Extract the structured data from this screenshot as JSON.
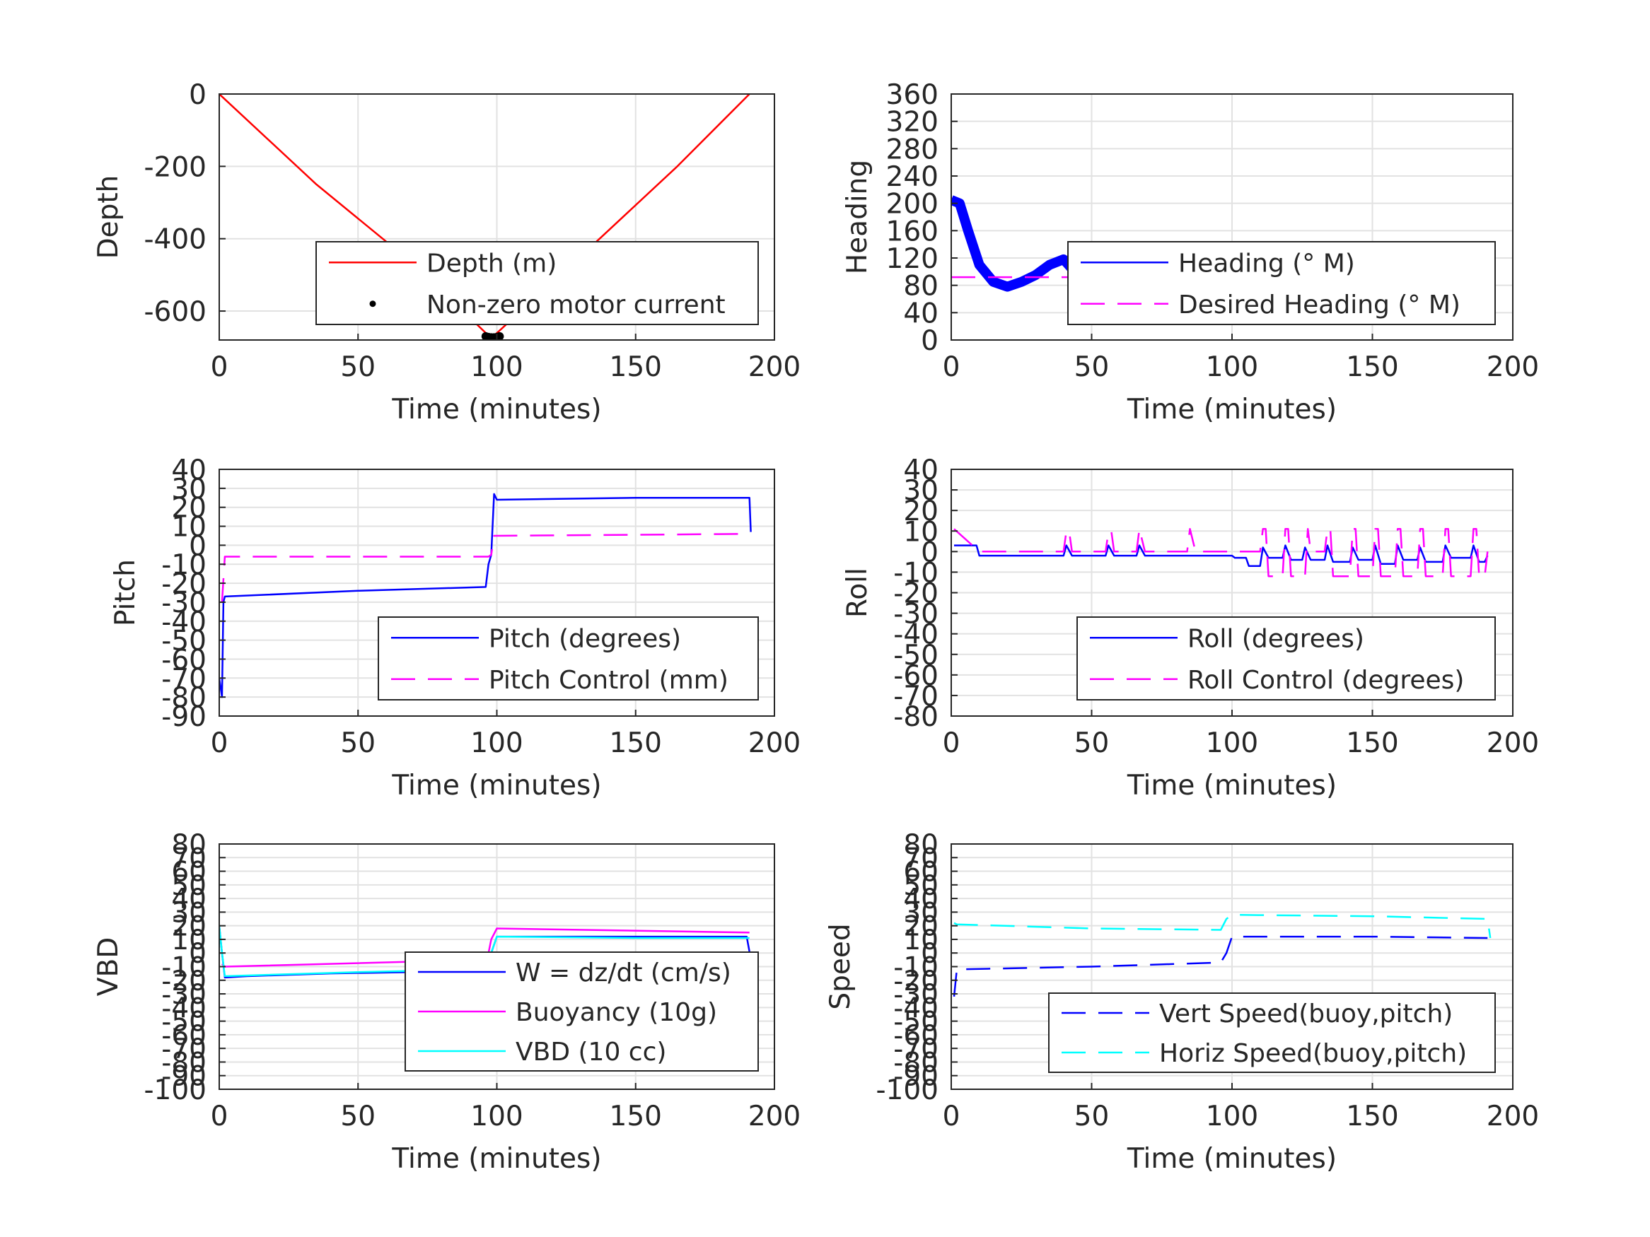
{
  "chart_data": [
    {
      "id": "depth",
      "type": "line",
      "xlabel": "Time (minutes)",
      "ylabel": "Depth",
      "xlim": [
        0,
        200
      ],
      "ylim": [
        -680,
        0
      ],
      "xticks": [
        0,
        50,
        100,
        150,
        200
      ],
      "yticks": [
        -600,
        -400,
        -200,
        0
      ],
      "grid": true,
      "legend_position": "lower-right",
      "series": [
        {
          "name": "Depth (m)",
          "style": "solid",
          "color": "#ff0000",
          "x": [
            0,
            35,
            70,
            98,
            130,
            165,
            191
          ],
          "y": [
            0,
            -250,
            -470,
            -675,
            -450,
            -200,
            0
          ]
        },
        {
          "name": "Non-zero motor current",
          "style": "dots",
          "color": "#000000",
          "x": [
            96,
            97,
            98,
            99,
            100,
            101
          ],
          "y": [
            -670,
            -672,
            -673,
            -673,
            -672,
            -670
          ]
        }
      ]
    },
    {
      "id": "heading",
      "type": "line",
      "xlabel": "Time (minutes)",
      "ylabel": "Heading",
      "xlim": [
        0,
        200
      ],
      "ylim": [
        0,
        360
      ],
      "xticks": [
        0,
        50,
        100,
        150,
        200
      ],
      "yticks": [
        0,
        40,
        80,
        120,
        160,
        200,
        240,
        280,
        320,
        360
      ],
      "grid": true,
      "legend_position": "lower-right",
      "series": [
        {
          "name": "Heading (° M)",
          "style": "thick",
          "color": "#0000ff",
          "x": [
            0,
            3,
            6,
            10,
            15,
            20,
            25,
            30,
            35,
            40,
            45,
            50,
            55,
            60,
            65,
            70,
            75,
            80,
            85,
            90,
            95,
            100,
            105,
            110,
            115,
            120,
            125,
            130,
            135,
            140,
            145,
            150,
            155,
            160,
            165,
            170,
            175,
            180,
            185,
            190
          ],
          "y": [
            205,
            200,
            160,
            110,
            85,
            78,
            85,
            95,
            110,
            118,
            95,
            112,
            100,
            125,
            95,
            125,
            90,
            118,
            105,
            115,
            95,
            120,
            105,
            85,
            130,
            70,
            135,
            60,
            120,
            95,
            125,
            80,
            120,
            95,
            125,
            90,
            115,
            100,
            110,
            60
          ]
        },
        {
          "name": "Desired Heading (° M)",
          "style": "dashed",
          "color": "#ff00ff",
          "x": [
            0,
            192
          ],
          "y": [
            92,
            92
          ]
        }
      ]
    },
    {
      "id": "pitch",
      "type": "line",
      "xlabel": "Time (minutes)",
      "ylabel": "Pitch",
      "xlim": [
        0,
        200
      ],
      "ylim": [
        -90,
        40
      ],
      "xticks": [
        0,
        50,
        100,
        150,
        200
      ],
      "yticks": [
        -90,
        -80,
        -70,
        -60,
        -50,
        -40,
        -30,
        -20,
        -10,
        0,
        10,
        20,
        30,
        40
      ],
      "grid": true,
      "legend_position": "lower-right",
      "series": [
        {
          "name": "Pitch (degrees)",
          "style": "solid",
          "color": "#0000ff",
          "x": [
            0,
            1,
            1.5,
            2,
            50,
            96,
            97,
            98,
            99,
            100,
            150,
            191,
            191.5
          ],
          "y": [
            -70,
            -80,
            -30,
            -27,
            -24,
            -22,
            -10,
            -5,
            27,
            24,
            25,
            25,
            7
          ]
        },
        {
          "name": "Pitch Control (mm)",
          "style": "dashed",
          "color": "#ff00ff",
          "x": [
            1,
            2,
            97,
            98,
            99,
            191
          ],
          "y": [
            -30,
            -6,
            -6,
            -5,
            5,
            6
          ]
        }
      ]
    },
    {
      "id": "roll",
      "type": "line",
      "xlabel": "Time (minutes)",
      "ylabel": "Roll",
      "xlim": [
        0,
        200
      ],
      "ylim": [
        -80,
        40
      ],
      "xticks": [
        0,
        50,
        100,
        150,
        200
      ],
      "yticks": [
        -80,
        -70,
        -60,
        -50,
        -40,
        -30,
        -20,
        -10,
        0,
        10,
        20,
        30,
        40
      ],
      "grid": true,
      "legend_position": "lower-right",
      "series": [
        {
          "name": "Roll (degrees)",
          "style": "solid",
          "color": "#0000ff",
          "x": [
            1,
            2,
            9,
            10,
            40,
            41,
            43,
            55,
            56,
            58,
            66,
            67,
            69,
            100,
            101,
            105,
            106,
            110,
            111,
            113,
            118,
            119,
            121,
            125,
            126,
            128,
            133,
            134,
            136,
            142,
            143,
            145,
            150,
            151,
            153,
            158,
            159,
            161,
            166,
            167,
            169,
            175,
            176,
            178,
            185,
            186,
            188,
            190,
            191
          ],
          "y": [
            3,
            3,
            3,
            -2,
            -2,
            3,
            -2,
            -2,
            3,
            -2,
            -2,
            3,
            -2,
            -2,
            -3,
            -3,
            -7,
            -7,
            2,
            -3,
            -3,
            3,
            -4,
            -4,
            2,
            -4,
            -4,
            3,
            -5,
            -5,
            2,
            -4,
            -4,
            3,
            -6,
            -6,
            3,
            -4,
            -4,
            2,
            -5,
            -5,
            3,
            -3,
            -3,
            3,
            -5,
            -5,
            -2
          ]
        },
        {
          "name": "Roll Control (degrees)",
          "style": "dashed",
          "color": "#ff00ff",
          "x": [
            1,
            10,
            40,
            41,
            42,
            43,
            55,
            56,
            57,
            58,
            66,
            67,
            69,
            84,
            85,
            87,
            110,
            111,
            112,
            113,
            118,
            119,
            120,
            121,
            126,
            127,
            128,
            133,
            134,
            135,
            136,
            142,
            143,
            144,
            145,
            150,
            151,
            152,
            153,
            158,
            159,
            160,
            161,
            166,
            167,
            168,
            169,
            175,
            176,
            177,
            178,
            185,
            186,
            187,
            188,
            190,
            191
          ],
          "y": [
            11,
            0,
            0,
            10,
            10,
            0,
            0,
            10,
            10,
            0,
            0,
            11,
            0,
            0,
            11,
            0,
            0,
            11,
            11,
            -12,
            -12,
            11,
            11,
            -12,
            -12,
            11,
            0,
            0,
            11,
            11,
            -12,
            -12,
            11,
            11,
            -12,
            -12,
            11,
            11,
            -12,
            -12,
            11,
            11,
            -12,
            -12,
            11,
            11,
            -12,
            -12,
            11,
            11,
            -12,
            -12,
            11,
            11,
            -12,
            -12,
            0
          ]
        }
      ]
    },
    {
      "id": "vbd",
      "type": "line",
      "xlabel": "Time (minutes)",
      "ylabel": "VBD",
      "xlim": [
        0,
        200
      ],
      "ylim": [
        -100,
        80
      ],
      "xticks": [
        0,
        50,
        100,
        150,
        200
      ],
      "yticks": [
        -100,
        -90,
        -80,
        -70,
        -60,
        -50,
        -40,
        -30,
        -20,
        -10,
        0,
        10,
        20,
        30,
        40,
        50,
        60,
        70,
        80
      ],
      "grid": true,
      "legend_position": "lower-right",
      "series": [
        {
          "name": "W = dz/dt (cm/s)",
          "style": "solid",
          "color": "#0000ff",
          "x": [
            0,
            1,
            2,
            10,
            40,
            70,
            96,
            98,
            100,
            140,
            190,
            191
          ],
          "y": [
            20,
            0,
            -18,
            -17,
            -15,
            -14,
            -12,
            0,
            12,
            12,
            12,
            1
          ]
        },
        {
          "name": "Buoyancy (10g)",
          "style": "solid",
          "color": "#ff00ff",
          "x": [
            1,
            2,
            95,
            96,
            97,
            98,
            100,
            191
          ],
          "y": [
            -8,
            -10,
            -5,
            -5,
            0,
            10,
            18,
            15
          ]
        },
        {
          "name": "VBD (10 cc)",
          "style": "solid",
          "color": "#00ffff",
          "x": [
            0,
            1,
            2,
            50,
            96,
            98,
            100,
            150,
            191
          ],
          "y": [
            20,
            0,
            -17,
            -14,
            -12,
            0,
            12,
            11,
            11
          ]
        }
      ]
    },
    {
      "id": "speed",
      "type": "line",
      "xlabel": "Time (minutes)",
      "ylabel": "Speed",
      "xlim": [
        0,
        200
      ],
      "ylim": [
        -100,
        80
      ],
      "xticks": [
        0,
        50,
        100,
        150,
        200
      ],
      "yticks": [
        -100,
        -90,
        -80,
        -70,
        -60,
        -50,
        -40,
        -30,
        -20,
        -10,
        0,
        10,
        20,
        30,
        40,
        50,
        60,
        70,
        80
      ],
      "grid": true,
      "legend_position": "lower-right",
      "series": [
        {
          "name": "Vert Speed(buoy,pitch)",
          "style": "dashed",
          "color": "#0000ff",
          "x": [
            1,
            2,
            50,
            96,
            98,
            100,
            150,
            191
          ],
          "y": [
            -32,
            -12,
            -10,
            -7,
            0,
            12,
            12,
            11
          ]
        },
        {
          "name": "Horiz Speed(buoy,pitch)",
          "style": "dashed",
          "color": "#00ffff",
          "x": [
            1,
            2,
            50,
            96,
            98,
            100,
            150,
            191,
            192
          ],
          "y": [
            22,
            21,
            18,
            17,
            25,
            28,
            27,
            25,
            11
          ]
        }
      ]
    }
  ]
}
